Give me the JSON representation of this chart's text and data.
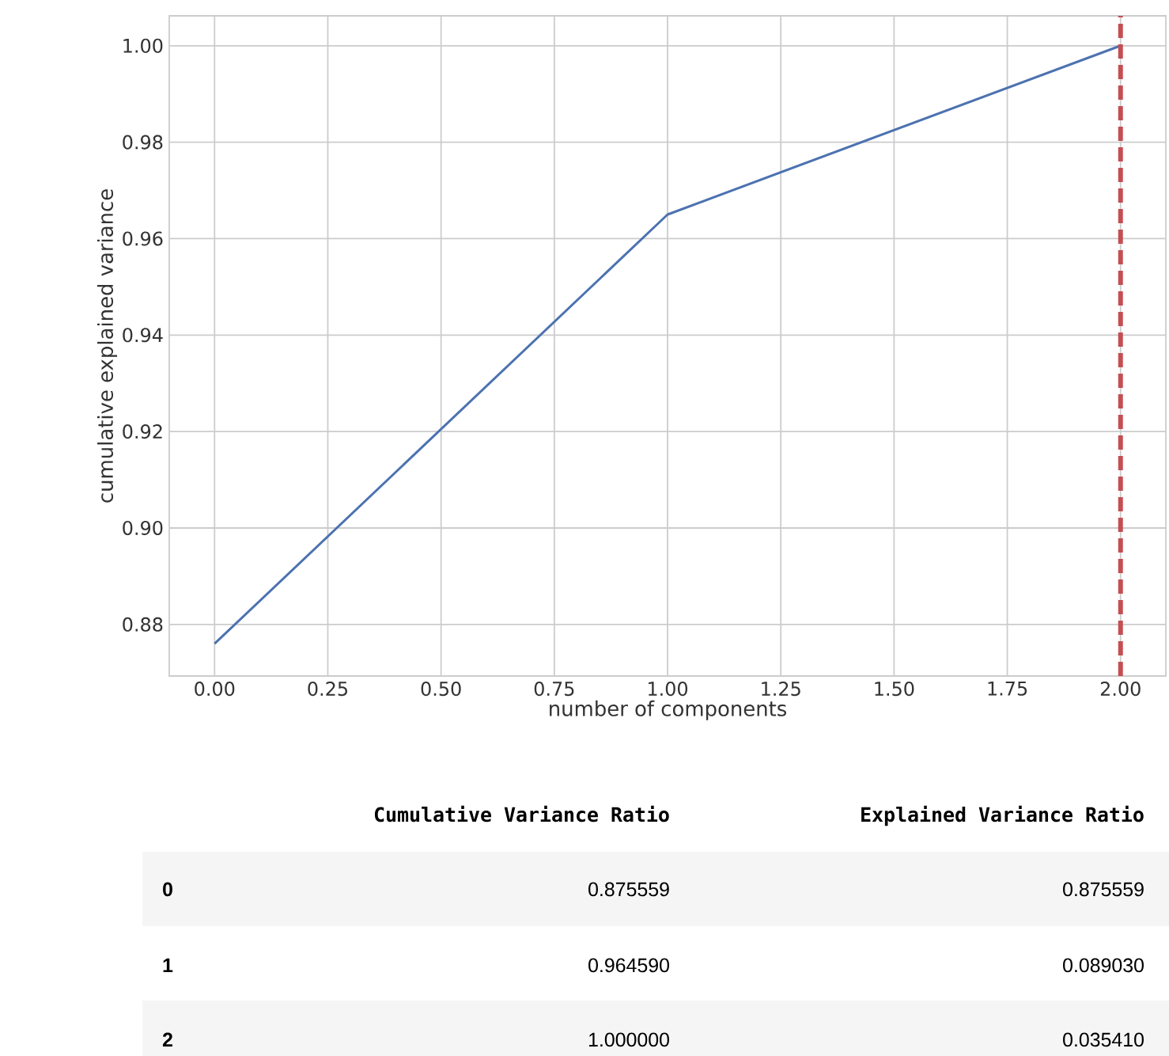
{
  "chart_data": {
    "type": "line",
    "xlabel": "number of components",
    "ylabel": "cumulative explained variance",
    "x": [
      0,
      1,
      2
    ],
    "series": [
      {
        "color": "#4c72b0",
        "values": [
          0.876,
          0.965,
          1.0
        ]
      }
    ],
    "xlim": [
      -0.1,
      2.1
    ],
    "ylim": [
      0.8693,
      1.0062
    ],
    "xticks": [
      {
        "value": 0,
        "label": "0.00"
      },
      {
        "value": 0.25,
        "label": "0.25"
      },
      {
        "value": 0.5,
        "label": "0.50"
      },
      {
        "value": 0.75,
        "label": "0.75"
      },
      {
        "value": 1,
        "label": "1.00"
      },
      {
        "value": 1.25,
        "label": "1.25"
      },
      {
        "value": 1.5,
        "label": "1.50"
      },
      {
        "value": 1.75,
        "label": "1.75"
      },
      {
        "value": 2,
        "label": "2.00"
      }
    ],
    "yticks": [
      {
        "value": 0.88,
        "label": "0.88"
      },
      {
        "value": 0.9,
        "label": "0.90"
      },
      {
        "value": 0.92,
        "label": "0.92"
      },
      {
        "value": 0.94,
        "label": "0.94"
      },
      {
        "value": 0.96,
        "label": "0.96"
      },
      {
        "value": 0.98,
        "label": "0.98"
      },
      {
        "value": 1.0,
        "label": "1.00"
      }
    ],
    "grid": true,
    "ref_lines": [
      {
        "axis": "x",
        "value": 2,
        "color": "#c44e52",
        "line_style": "dashed"
      }
    ],
    "annotations": [
      "Cumulative Variance Ratio",
      "Explained Variance Ratio",
      "0",
      "1",
      "2",
      "0.875559",
      "0.089030",
      "0.035410",
      "0.875559",
      "0.964590",
      "1.000000"
    ]
  }
}
